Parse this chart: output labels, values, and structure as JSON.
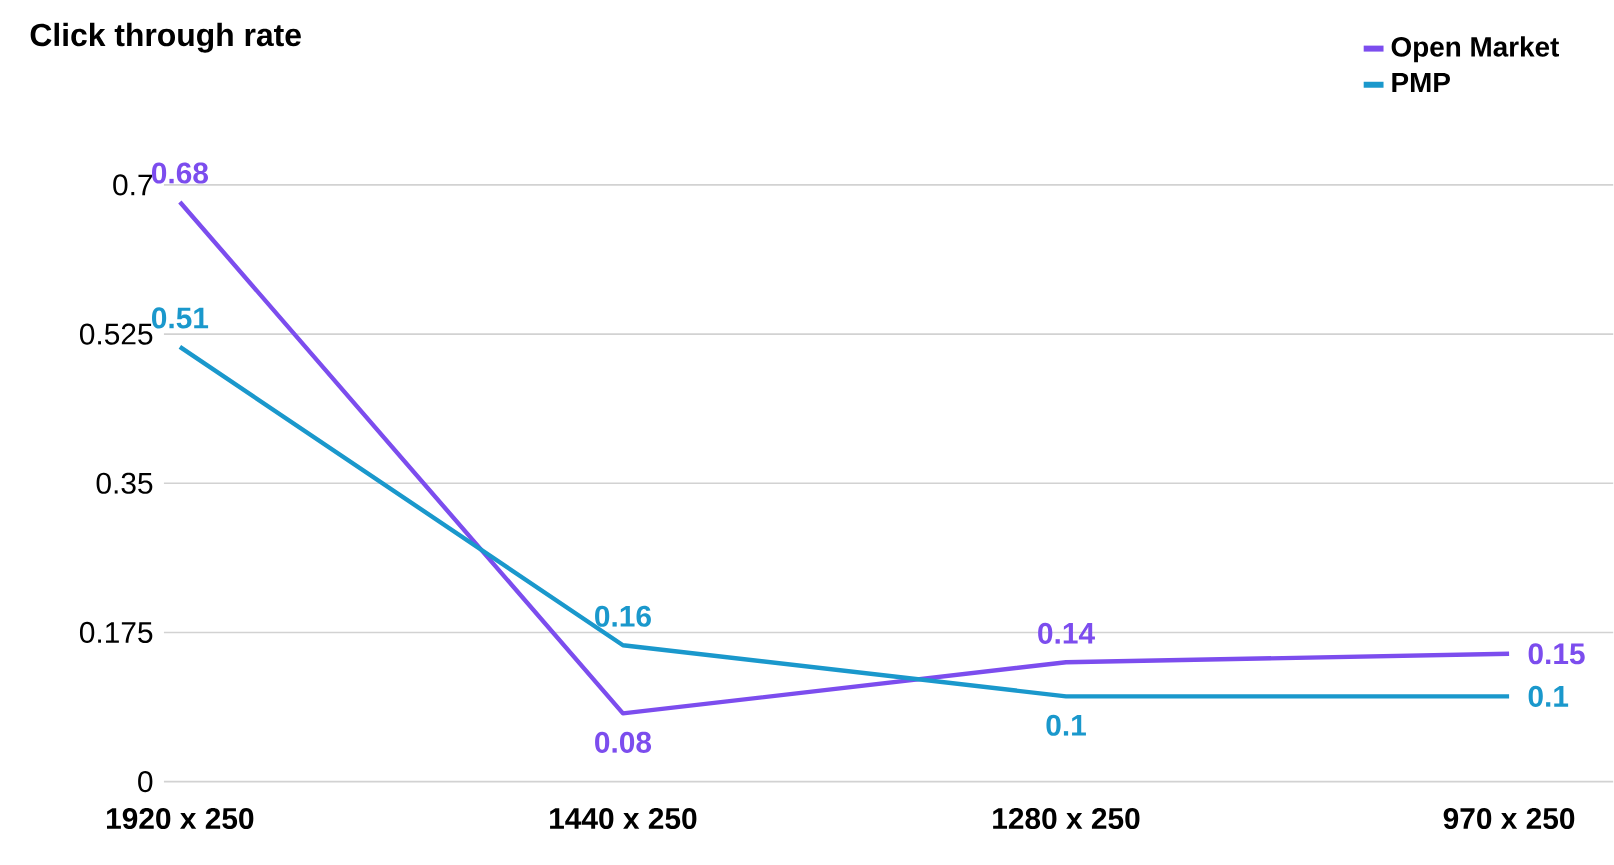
{
  "chart_data": {
    "type": "line",
    "title": "Click through rate",
    "categories": [
      "1920 x 250",
      "1440 x 250",
      "1280 x 250",
      "970 x 250"
    ],
    "series": [
      {
        "name": "Open Market",
        "color": "#7c4dee",
        "values": [
          0.68,
          0.08,
          0.14,
          0.15
        ]
      },
      {
        "name": "PMP",
        "color": "#1a98cc",
        "values": [
          0.51,
          0.16,
          0.1,
          0.1
        ]
      }
    ],
    "ylim": [
      0,
      0.7
    ],
    "yticks": [
      0,
      0.175,
      0.35,
      0.525,
      0.7
    ],
    "grid": "y",
    "legend": "top right",
    "data_labels": true,
    "marker": "none",
    "line_style": "solid"
  }
}
